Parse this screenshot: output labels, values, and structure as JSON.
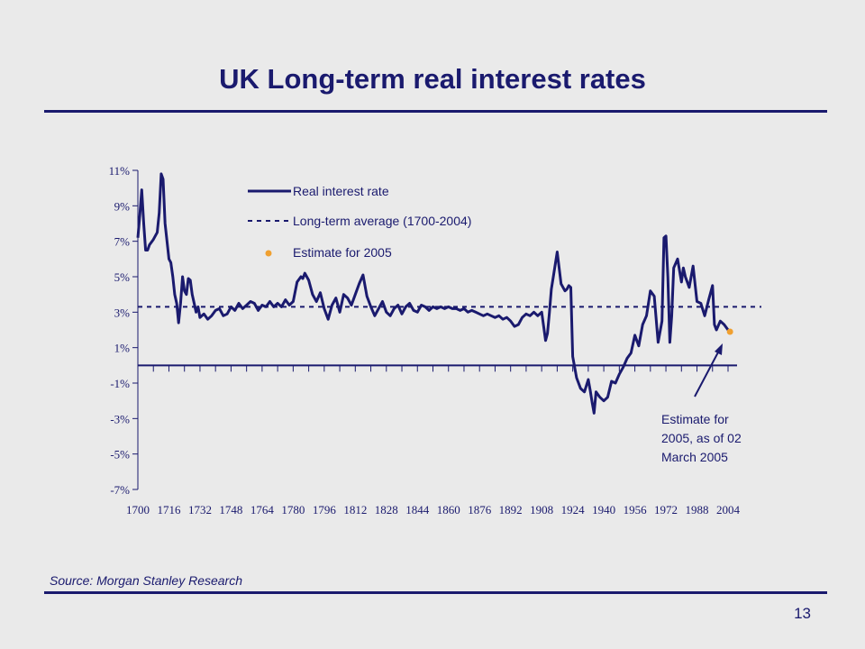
{
  "slide": {
    "title": "UK Long-term real interest rates",
    "source": "Source:  Morgan Stanley Research",
    "page_number": "13"
  },
  "colors": {
    "navy": "#1a1a6e",
    "estimate": "#f0a030",
    "background": "#eaeaea"
  },
  "chart_data": {
    "type": "line",
    "title": "UK Long-term real interest rates",
    "xlabel": "",
    "ylabel": "",
    "xlim": [
      1700,
      2004
    ],
    "ylim": [
      -7,
      11
    ],
    "grid": false,
    "legend_position": "top-center",
    "x_ticks": [
      1700,
      1716,
      1732,
      1748,
      1764,
      1780,
      1796,
      1812,
      1828,
      1844,
      1860,
      1876,
      1892,
      1908,
      1924,
      1940,
      1956,
      1972,
      1988,
      2004
    ],
    "y_ticks": [
      11,
      9,
      7,
      5,
      3,
      1,
      -1,
      -3,
      -5,
      -7
    ],
    "y_tick_labels": [
      "11%",
      "9%",
      "7%",
      "5%",
      "3%",
      "1%",
      "-1%",
      "-3%",
      "-5%",
      "-7%"
    ],
    "series": [
      {
        "name": "Real interest rate",
        "style": "solid",
        "x": [
          1700,
          1701,
          1702,
          1703,
          1704,
          1705,
          1706,
          1708,
          1710,
          1711,
          1712,
          1713,
          1714,
          1716,
          1717,
          1718,
          1719,
          1720,
          1721,
          1722,
          1723,
          1724,
          1725,
          1726,
          1727,
          1728,
          1729,
          1730,
          1731,
          1732,
          1734,
          1736,
          1738,
          1740,
          1742,
          1744,
          1746,
          1748,
          1750,
          1752,
          1754,
          1756,
          1758,
          1760,
          1762,
          1764,
          1766,
          1768,
          1770,
          1772,
          1774,
          1776,
          1778,
          1780,
          1782,
          1784,
          1785,
          1786,
          1788,
          1790,
          1792,
          1794,
          1796,
          1798,
          1800,
          1802,
          1804,
          1806,
          1808,
          1810,
          1812,
          1814,
          1816,
          1818,
          1820,
          1822,
          1824,
          1826,
          1828,
          1830,
          1832,
          1834,
          1836,
          1838,
          1840,
          1842,
          1844,
          1846,
          1848,
          1850,
          1852,
          1854,
          1856,
          1858,
          1860,
          1862,
          1864,
          1866,
          1868,
          1870,
          1872,
          1874,
          1876,
          1878,
          1880,
          1882,
          1884,
          1886,
          1888,
          1890,
          1892,
          1894,
          1896,
          1898,
          1900,
          1902,
          1904,
          1906,
          1908,
          1910,
          1911,
          1912,
          1913,
          1914,
          1916,
          1918,
          1920,
          1921,
          1922,
          1923,
          1924,
          1926,
          1928,
          1930,
          1932,
          1933,
          1934,
          1935,
          1936,
          1938,
          1940,
          1942,
          1944,
          1946,
          1948,
          1950,
          1952,
          1954,
          1956,
          1958,
          1960,
          1962,
          1964,
          1966,
          1968,
          1970,
          1971,
          1972,
          1973,
          1974,
          1975,
          1976,
          1978,
          1980,
          1981,
          1982,
          1984,
          1986,
          1988,
          1990,
          1992,
          1994,
          1996,
          1997,
          1998,
          2000,
          2002,
          2004
        ],
        "values": [
          7.2,
          8.5,
          9.9,
          8.0,
          6.5,
          6.5,
          6.8,
          7.1,
          7.5,
          8.6,
          10.8,
          10.5,
          8.0,
          6.0,
          5.8,
          5.0,
          4.0,
          3.5,
          2.4,
          3.5,
          5.0,
          4.2,
          4.0,
          4.9,
          4.8,
          4.0,
          3.5,
          3.0,
          3.3,
          2.7,
          2.9,
          2.6,
          2.8,
          3.1,
          3.2,
          2.8,
          2.9,
          3.3,
          3.1,
          3.5,
          3.2,
          3.4,
          3.6,
          3.5,
          3.1,
          3.4,
          3.3,
          3.6,
          3.3,
          3.5,
          3.3,
          3.7,
          3.4,
          3.6,
          4.7,
          5.0,
          4.9,
          5.2,
          4.8,
          4.0,
          3.6,
          4.1,
          3.2,
          2.6,
          3.4,
          3.8,
          3.0,
          4.0,
          3.8,
          3.4,
          4.0,
          4.6,
          5.1,
          3.9,
          3.3,
          2.8,
          3.2,
          3.6,
          3.0,
          2.8,
          3.2,
          3.4,
          2.9,
          3.3,
          3.5,
          3.1,
          3.0,
          3.4,
          3.3,
          3.1,
          3.3,
          3.2,
          3.3,
          3.2,
          3.3,
          3.2,
          3.2,
          3.1,
          3.2,
          3.0,
          3.1,
          3.0,
          2.9,
          2.8,
          2.9,
          2.8,
          2.7,
          2.8,
          2.6,
          2.7,
          2.5,
          2.2,
          2.3,
          2.7,
          2.9,
          2.8,
          3.0,
          2.8,
          3.0,
          1.4,
          1.8,
          3.0,
          4.3,
          5.0,
          6.4,
          4.6,
          4.2,
          4.3,
          4.5,
          4.4,
          0.5,
          -0.7,
          -1.3,
          -1.5,
          -0.8,
          -1.4,
          -2.1,
          -2.7,
          -1.5,
          -1.8,
          -2.0,
          -1.8,
          -0.9,
          -1.0,
          -0.5,
          -0.1,
          0.4,
          0.7,
          1.7,
          1.1,
          2.3,
          2.8,
          4.2,
          3.9,
          1.3,
          2.5,
          7.2,
          7.3,
          5.0,
          1.3,
          2.8,
          5.5,
          6.0,
          4.7,
          5.5,
          5.0,
          4.4,
          5.6,
          3.6,
          3.5,
          2.8,
          3.7,
          4.5,
          2.3,
          2.0,
          2.5,
          2.3,
          2.0
        ]
      },
      {
        "name": "Long-term average (1700-2004)",
        "style": "dashed",
        "value": 3.3
      },
      {
        "name": "Estimate for 2005",
        "style": "marker",
        "x": [
          2005
        ],
        "values": [
          1.9
        ]
      }
    ],
    "annotation": {
      "lines": [
        "Estimate for",
        "2005, as of 02",
        "March 2005"
      ]
    }
  }
}
